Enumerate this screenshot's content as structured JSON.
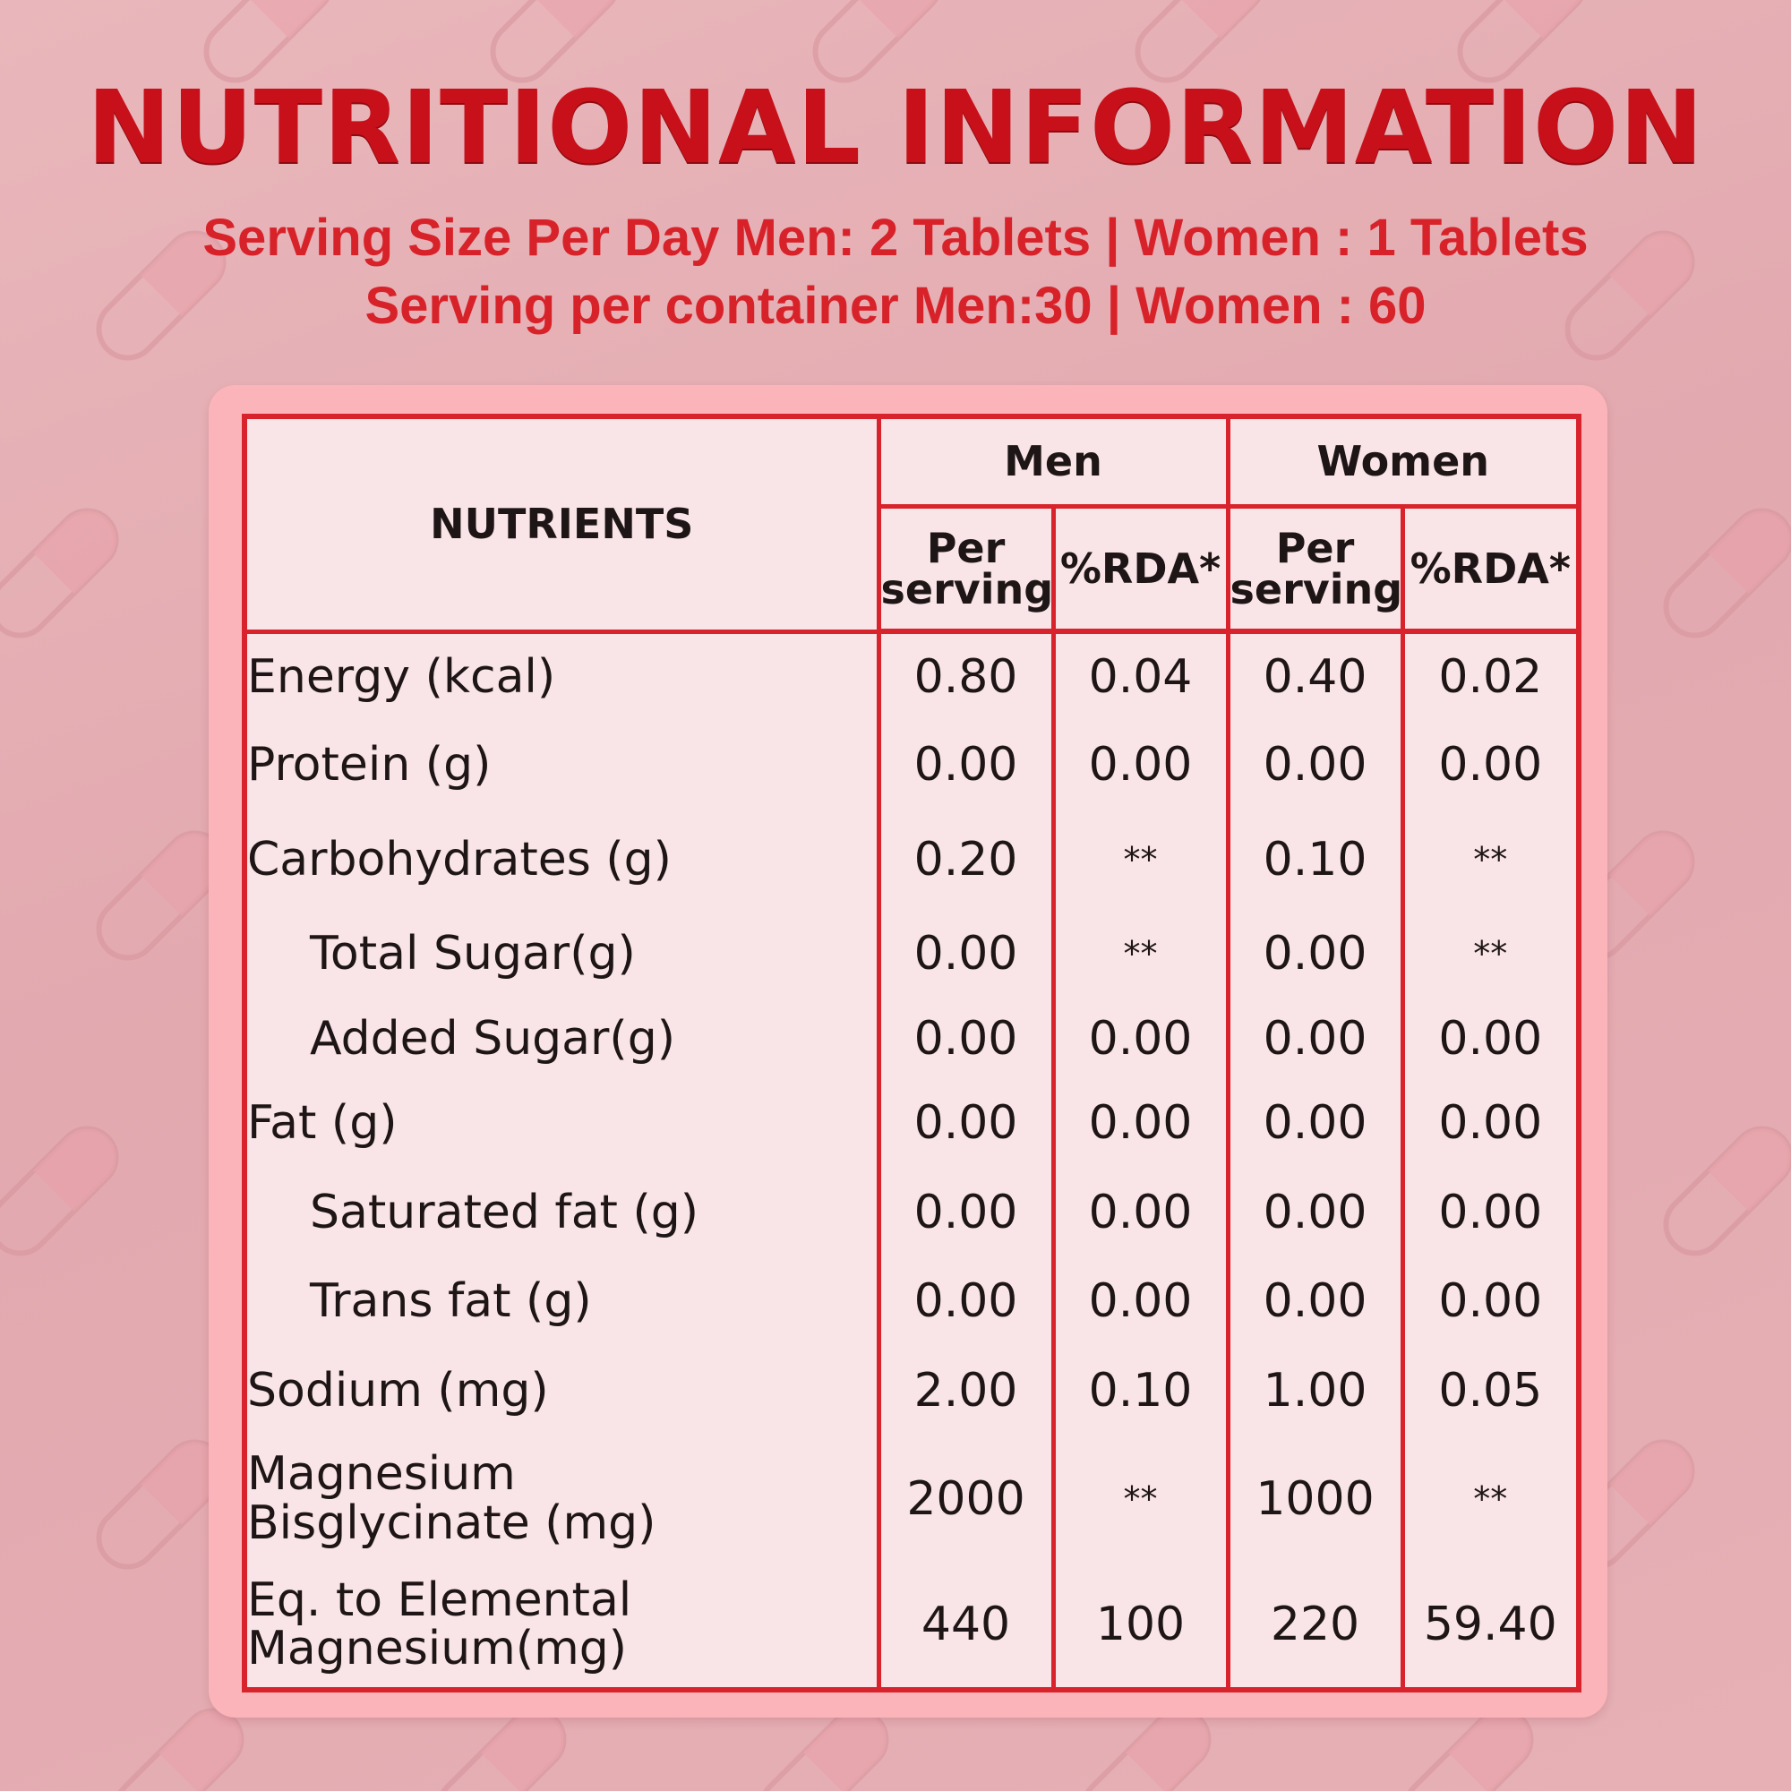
{
  "title": "NUTRITIONAL INFORMATION",
  "serving_size_line": "Serving Size Per Day Men: 2 Tablets | Women : 1 Tablets",
  "serving_container_line": "Serving per container Men:30 | Women : 60",
  "table": {
    "nutrients_header": "NUTRIENTS",
    "men_header": "Men",
    "women_header": "Women",
    "per_serving_header": "Per\nserving",
    "rda_header": "%RDA*",
    "rows": [
      {
        "name": "Energy (kcal)",
        "indent": false,
        "men_per": "0.80",
        "men_rda": "0.04",
        "women_per": "0.40",
        "women_rda": "0.02"
      },
      {
        "name": "Protein (g)",
        "indent": false,
        "men_per": "0.00",
        "men_rda": "0.00",
        "women_per": "0.00",
        "women_rda": "0.00"
      },
      {
        "name": "Carbohydrates (g)",
        "indent": false,
        "men_per": "0.20",
        "men_rda": "**",
        "women_per": "0.10",
        "women_rda": "**"
      },
      {
        "name": "Total Sugar(g)",
        "indent": true,
        "men_per": "0.00",
        "men_rda": "**",
        "women_per": "0.00",
        "women_rda": "**"
      },
      {
        "name": "Added Sugar(g)",
        "indent": true,
        "men_per": "0.00",
        "men_rda": "0.00",
        "women_per": "0.00",
        "women_rda": "0.00"
      },
      {
        "name": "Fat (g)",
        "indent": false,
        "men_per": "0.00",
        "men_rda": "0.00",
        "women_per": "0.00",
        "women_rda": "0.00"
      },
      {
        "name": "Saturated fat (g)",
        "indent": true,
        "men_per": "0.00",
        "men_rda": "0.00",
        "women_per": "0.00",
        "women_rda": "0.00"
      },
      {
        "name": "Trans fat (g)",
        "indent": true,
        "men_per": "0.00",
        "men_rda": "0.00",
        "women_per": "0.00",
        "women_rda": "0.00"
      },
      {
        "name": "Sodium (mg)",
        "indent": false,
        "men_per": "2.00",
        "men_rda": "0.10",
        "women_per": "1.00",
        "women_rda": "0.05"
      },
      {
        "name": "Magnesium\nBisglycinate (mg)",
        "indent": false,
        "men_per": "2000",
        "men_rda": "**",
        "women_per": "1000",
        "women_rda": "**"
      },
      {
        "name": "Eq. to Elemental\nMagnesium(mg)",
        "indent": false,
        "men_per": "440",
        "men_rda": "100",
        "women_per": "220",
        "women_rda": "59.40"
      }
    ]
  },
  "colors": {
    "accent_red": "#d9232c",
    "title_red": "#c8101a",
    "card_pink": "#fbb5ba",
    "table_bg": "#f9e4e7"
  }
}
